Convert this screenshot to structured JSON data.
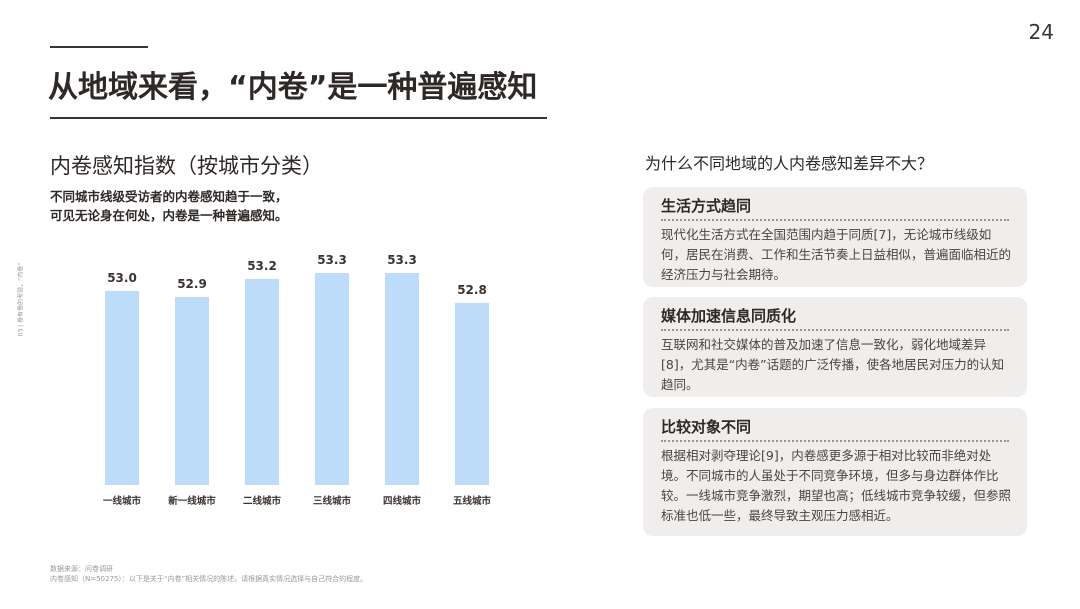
{
  "page_number": "24",
  "header": {
    "title": "从地域来看，“内卷”是一种普遍感知"
  },
  "chart_data": {
    "type": "bar",
    "title": "内卷感知指数（按城市分类）",
    "subtitle": "不同城市线级受访者的内卷感知趋于一致，\n可见无论身在何处，内卷是一种普遍感知。",
    "categories": [
      "一线城市",
      "新一线城市",
      "二线城市",
      "三线城市",
      "四线城市",
      "五线城市"
    ],
    "values": [
      53.0,
      52.9,
      53.2,
      53.3,
      53.3,
      52.8
    ],
    "value_labels": [
      "53.0",
      "52.9",
      "53.2",
      "53.3",
      "53.3",
      "52.8"
    ],
    "color": "#bddcfa"
  },
  "side_label": "03 | 卷有卷的考验，“内卷”",
  "panel": {
    "question": "为什么不同地域的人内卷感知差异不大？",
    "cards": [
      {
        "title": "生活方式趋同",
        "body": "现代化生活方式在全国范围内趋于同质[7]，无论城市线级如何，居民在消费、工作和生活节奏上日益相似，普遍面临相近的经济压力与社会期待。"
      },
      {
        "title": "媒体加速信息同质化",
        "body": "互联网和社交媒体的普及加速了信息一致化，弱化地域差异[8]，尤其是“内卷”话题的广泛传播，使各地居民对压力的认知趋同。"
      },
      {
        "title": "比较对象不同",
        "body": "根据相对剥夺理论[9]，内卷感更多源于相对比较而非绝对处境。不同城市的人虽处于不同竞争环境，但多与身边群体作比较。一线城市竞争激烈，期望也高；低线城市竞争较缓，但参照标准也低一些，最终导致主观压力感相近。"
      }
    ]
  },
  "source": [
    "数据来源：问卷调研",
    "内卷感知（N=50275）：以下是关于“内卷”相关情况的陈述，请根据真实情况选择与自己符合的程度。"
  ]
}
